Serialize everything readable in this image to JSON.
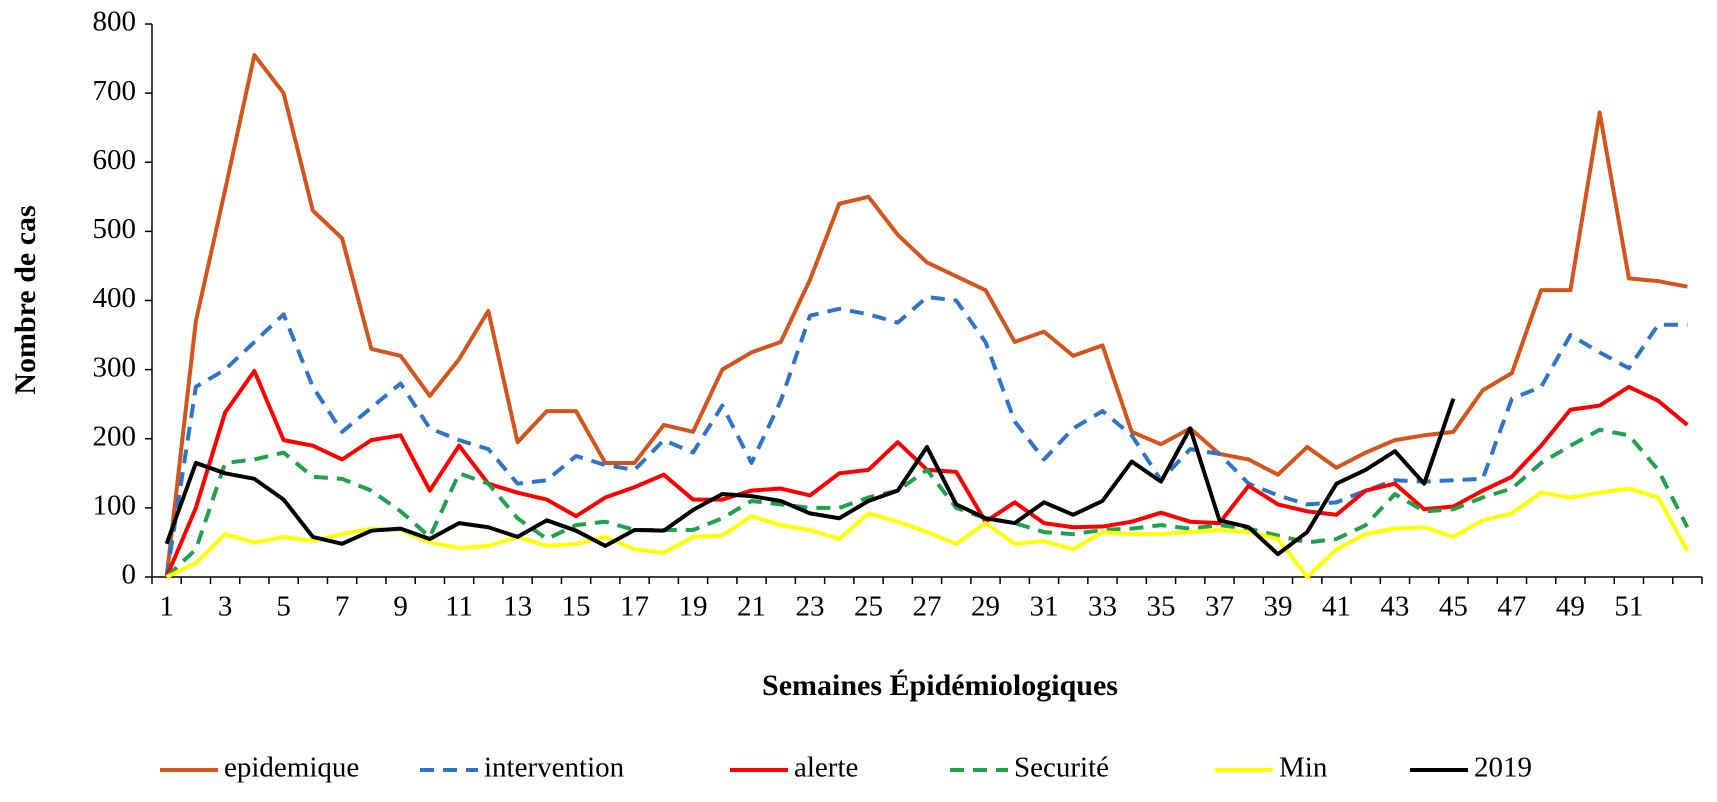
{
  "chart_data": {
    "type": "line",
    "x_label": "Semaines Épidémiologiques",
    "y_label": "Nombre de cas",
    "categories": [
      "1",
      null,
      "3",
      null,
      "5",
      null,
      "7",
      null,
      "9",
      null,
      "11",
      null,
      "13",
      null,
      "15",
      null,
      "17",
      null,
      "19",
      null,
      "21",
      null,
      "23",
      null,
      "25",
      null,
      "27",
      null,
      "29",
      null,
      "31",
      null,
      "33",
      null,
      "35",
      null,
      "37",
      null,
      "39",
      null,
      "41",
      null,
      "43",
      null,
      "45",
      null,
      "47",
      null,
      "49",
      null,
      "51",
      null,
      null
    ],
    "ylim": [
      0,
      800
    ],
    "yticks": [
      0,
      100,
      200,
      300,
      400,
      500,
      600,
      700,
      800
    ],
    "series": [
      {
        "name": "epidemique",
        "color": "#d4541b",
        "dashed": false,
        "values": [
          0,
          370,
          560,
          755,
          700,
          530,
          490,
          330,
          320,
          262,
          315,
          385,
          195,
          240,
          240,
          165,
          165,
          220,
          210,
          300,
          325,
          340,
          430,
          540,
          550,
          495,
          455,
          435,
          415,
          340,
          355,
          320,
          335,
          210,
          192,
          215,
          178,
          170,
          148,
          188,
          158,
          180,
          198,
          205,
          210,
          270,
          295,
          415,
          415,
          672,
          432,
          428,
          420
        ]
      },
      {
        "name": "intervention",
        "color": "#2e75c9",
        "dashed": true,
        "values": [
          0,
          275,
          300,
          340,
          380,
          275,
          210,
          245,
          280,
          215,
          198,
          185,
          135,
          140,
          175,
          162,
          155,
          198,
          180,
          248,
          165,
          255,
          378,
          388,
          380,
          368,
          405,
          400,
          340,
          225,
          170,
          215,
          240,
          205,
          140,
          185,
          178,
          135,
          118,
          105,
          108,
          125,
          140,
          138,
          140,
          142,
          258,
          275,
          350,
          325,
          302,
          365,
          365
        ]
      },
      {
        "name": "alerte",
        "color": "#ff0000",
        "dashed": false,
        "values": [
          0,
          100,
          238,
          298,
          198,
          190,
          170,
          198,
          205,
          125,
          190,
          135,
          122,
          112,
          88,
          115,
          130,
          148,
          112,
          112,
          125,
          128,
          118,
          150,
          155,
          195,
          155,
          152,
          80,
          108,
          78,
          72,
          73,
          80,
          93,
          80,
          78,
          132,
          105,
          95,
          90,
          125,
          135,
          98,
          102,
          125,
          145,
          190,
          242,
          248,
          275,
          255,
          220
        ]
      },
      {
        "name": "Securité",
        "color": "#1fa24a",
        "dashed": true,
        "values": [
          0,
          40,
          165,
          170,
          180,
          145,
          142,
          125,
          95,
          58,
          150,
          135,
          85,
          55,
          75,
          80,
          68,
          68,
          68,
          85,
          110,
          105,
          100,
          100,
          115,
          125,
          155,
          100,
          85,
          78,
          65,
          62,
          68,
          70,
          75,
          70,
          75,
          70,
          60,
          50,
          55,
          75,
          120,
          95,
          98,
          115,
          128,
          165,
          190,
          213,
          205,
          155,
          72
        ]
      },
      {
        "name": "Min",
        "color": "#ffff00",
        "dashed": false,
        "values": [
          0,
          20,
          62,
          50,
          58,
          52,
          62,
          70,
          68,
          50,
          42,
          45,
          58,
          45,
          48,
          58,
          40,
          35,
          58,
          60,
          88,
          75,
          68,
          55,
          92,
          80,
          65,
          48,
          78,
          48,
          52,
          40,
          65,
          62,
          62,
          65,
          68,
          65,
          55,
          0,
          40,
          62,
          70,
          72,
          58,
          82,
          92,
          122,
          115,
          122,
          128,
          115,
          38
        ]
      },
      {
        "name": "2019",
        "color": "#000000",
        "dashed": false,
        "values": [
          48,
          165,
          150,
          142,
          112,
          58,
          48,
          67,
          70,
          55,
          78,
          72,
          58,
          82,
          67,
          45,
          68,
          67,
          97,
          120,
          117,
          110,
          92,
          85,
          110,
          125,
          188,
          105,
          85,
          78,
          108,
          90,
          110,
          167,
          138,
          215,
          82,
          72,
          33,
          65,
          135,
          155,
          182,
          135,
          258,
          null,
          null,
          null,
          null,
          null,
          null,
          null,
          null
        ]
      }
    ]
  }
}
